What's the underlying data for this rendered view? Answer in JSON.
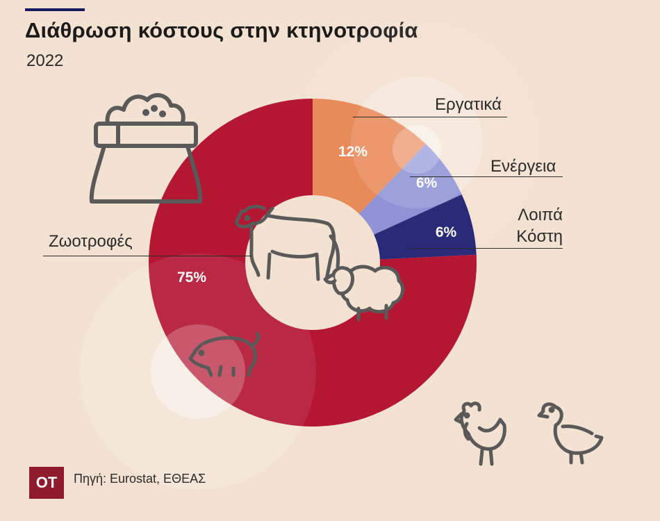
{
  "header": {
    "title": "Διάθρωση κόστους στην κτηνοτροφία",
    "subtitle": "2022"
  },
  "chart_data": {
    "type": "pie",
    "variant": "donut",
    "title": "Διάθρωση κόστους στην κτηνοτροφία",
    "subtitle": "2022",
    "slices": [
      {
        "label": "Εργατικά",
        "value": 12,
        "display": "12%",
        "color": "#e98a5a"
      },
      {
        "label": "Ενέργεια",
        "value": 6,
        "display": "6%",
        "color": "#8f93d6"
      },
      {
        "label": "Λοιπά Κόστη",
        "value": 6,
        "display": "6%",
        "color": "#2a2a78"
      },
      {
        "label": "Ζωοτροφές",
        "value": 75,
        "display": "75%",
        "color": "#b51733"
      }
    ]
  },
  "labels": {
    "labor": "Εργατικά",
    "energy": "Ενέργεια",
    "other_line1": "Λοιπά",
    "other_line2": "Κόστη",
    "feed": "Ζωοτροφές"
  },
  "icons": [
    "feed-sack-icon",
    "cow-icon",
    "sheep-icon",
    "pig-icon",
    "rooster-icon",
    "duck-icon"
  ],
  "footer": {
    "logo": "ΟΤ",
    "source": "Πηγή: Eurostat, ΕΘΕΑΣ"
  }
}
